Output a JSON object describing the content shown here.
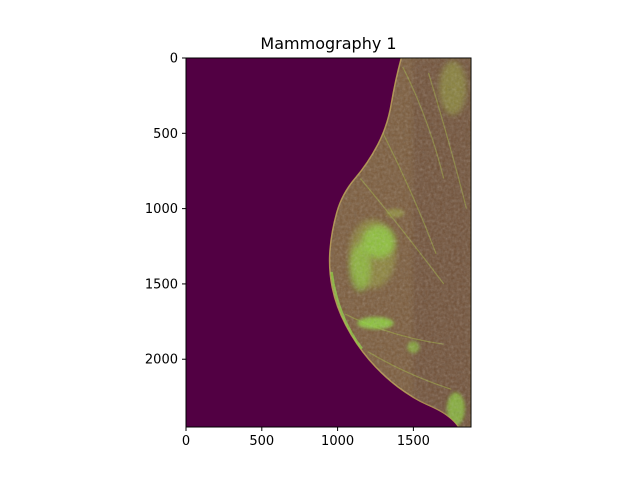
{
  "chart_data": {
    "type": "heatmap",
    "title": "Mammography 1",
    "xlabel": "",
    "ylabel": "",
    "image_width": 1880,
    "image_height": 2450,
    "xlim": [
      0,
      1880
    ],
    "ylim": [
      2450,
      0
    ],
    "xticks": [
      {
        "value": 0,
        "label": "0"
      },
      {
        "value": 500,
        "label": "500"
      },
      {
        "value": 1000,
        "label": "1000"
      },
      {
        "value": 1500,
        "label": "1500"
      }
    ],
    "yticks": [
      {
        "value": 0,
        "label": "0"
      },
      {
        "value": 500,
        "label": "500"
      },
      {
        "value": 1000,
        "label": "1000"
      },
      {
        "value": 1500,
        "label": "1500"
      },
      {
        "value": 2000,
        "label": "2000"
      }
    ],
    "grid": false,
    "colors": {
      "background": "#520043",
      "tissue": "#7a5a3a",
      "tissue_dark": "#5e3f36",
      "highlight": "#8ed33a",
      "highlight_mid": "#9aa53c",
      "edge": "#b09250"
    }
  }
}
